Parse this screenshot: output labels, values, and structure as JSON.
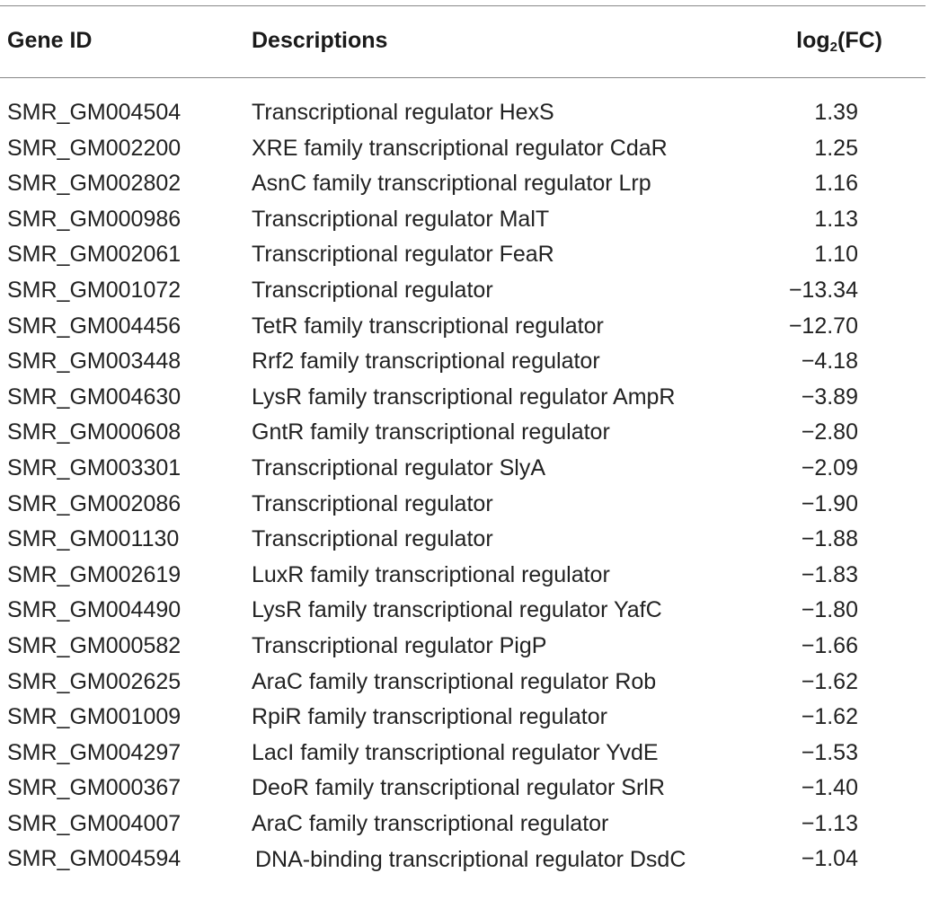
{
  "table": {
    "headers": {
      "gene_id": "Gene ID",
      "descriptions": "Descriptions",
      "fc_prefix": "log",
      "fc_sub": "2",
      "fc_suffix": "(FC)"
    },
    "rows": [
      {
        "gene_id": "SMR_GM004504",
        "description": "Transcriptional regulator HexS",
        "log2fc": "1.39"
      },
      {
        "gene_id": "SMR_GM002200",
        "description": "XRE family transcriptional regulator CdaR",
        "log2fc": "1.25"
      },
      {
        "gene_id": "SMR_GM002802",
        "description": "AsnC family transcriptional regulator Lrp",
        "log2fc": "1.16"
      },
      {
        "gene_id": "SMR_GM000986",
        "description": "Transcriptional regulator MalT",
        "log2fc": "1.13"
      },
      {
        "gene_id": "SMR_GM002061",
        "description": "Transcriptional regulator FeaR",
        "log2fc": "1.10"
      },
      {
        "gene_id": "SMR_GM001072",
        "description": "Transcriptional regulator",
        "log2fc": "−13.34"
      },
      {
        "gene_id": "SMR_GM004456",
        "description": "TetR family transcriptional regulator",
        "log2fc": "−12.70"
      },
      {
        "gene_id": "SMR_GM003448",
        "description": "Rrf2 family transcriptional regulator",
        "log2fc": "−4.18"
      },
      {
        "gene_id": "SMR_GM004630",
        "description": "LysR family transcriptional regulator AmpR",
        "log2fc": "−3.89"
      },
      {
        "gene_id": "SMR_GM000608",
        "description": "GntR family transcriptional regulator",
        "log2fc": "−2.80"
      },
      {
        "gene_id": "SMR_GM003301",
        "description": "Transcriptional regulator SlyA",
        "log2fc": "−2.09"
      },
      {
        "gene_id": "SMR_GM002086",
        "description": "Transcriptional regulator",
        "log2fc": "−1.90"
      },
      {
        "gene_id": "SMR_GM001130",
        "description": "Transcriptional regulator",
        "log2fc": "−1.88"
      },
      {
        "gene_id": "SMR_GM002619",
        "description": "LuxR family transcriptional regulator",
        "log2fc": "−1.83"
      },
      {
        "gene_id": "SMR_GM004490",
        "description": "LysR family transcriptional regulator YafC",
        "log2fc": "−1.80"
      },
      {
        "gene_id": "SMR_GM000582",
        "description": "Transcriptional regulator PigP",
        "log2fc": "−1.66"
      },
      {
        "gene_id": "SMR_GM002625",
        "description": "AraC family transcriptional regulator Rob",
        "log2fc": "−1.62"
      },
      {
        "gene_id": "SMR_GM001009",
        "description": "RpiR family transcriptional regulator",
        "log2fc": "−1.62"
      },
      {
        "gene_id": "SMR_GM004297",
        "description": "LacI family transcriptional regulator YvdE",
        "log2fc": "−1.53"
      },
      {
        "gene_id": "SMR_GM000367",
        "description": "DeoR family transcriptional regulator SrlR",
        "log2fc": "−1.40"
      },
      {
        "gene_id": "SMR_GM004007",
        "description": "AraC family transcriptional regulator",
        "log2fc": "−1.13"
      },
      {
        "gene_id": "SMR_GM004594",
        "description": "DNA-binding transcriptional regulator DsdC",
        "log2fc": "−1.04"
      }
    ]
  }
}
